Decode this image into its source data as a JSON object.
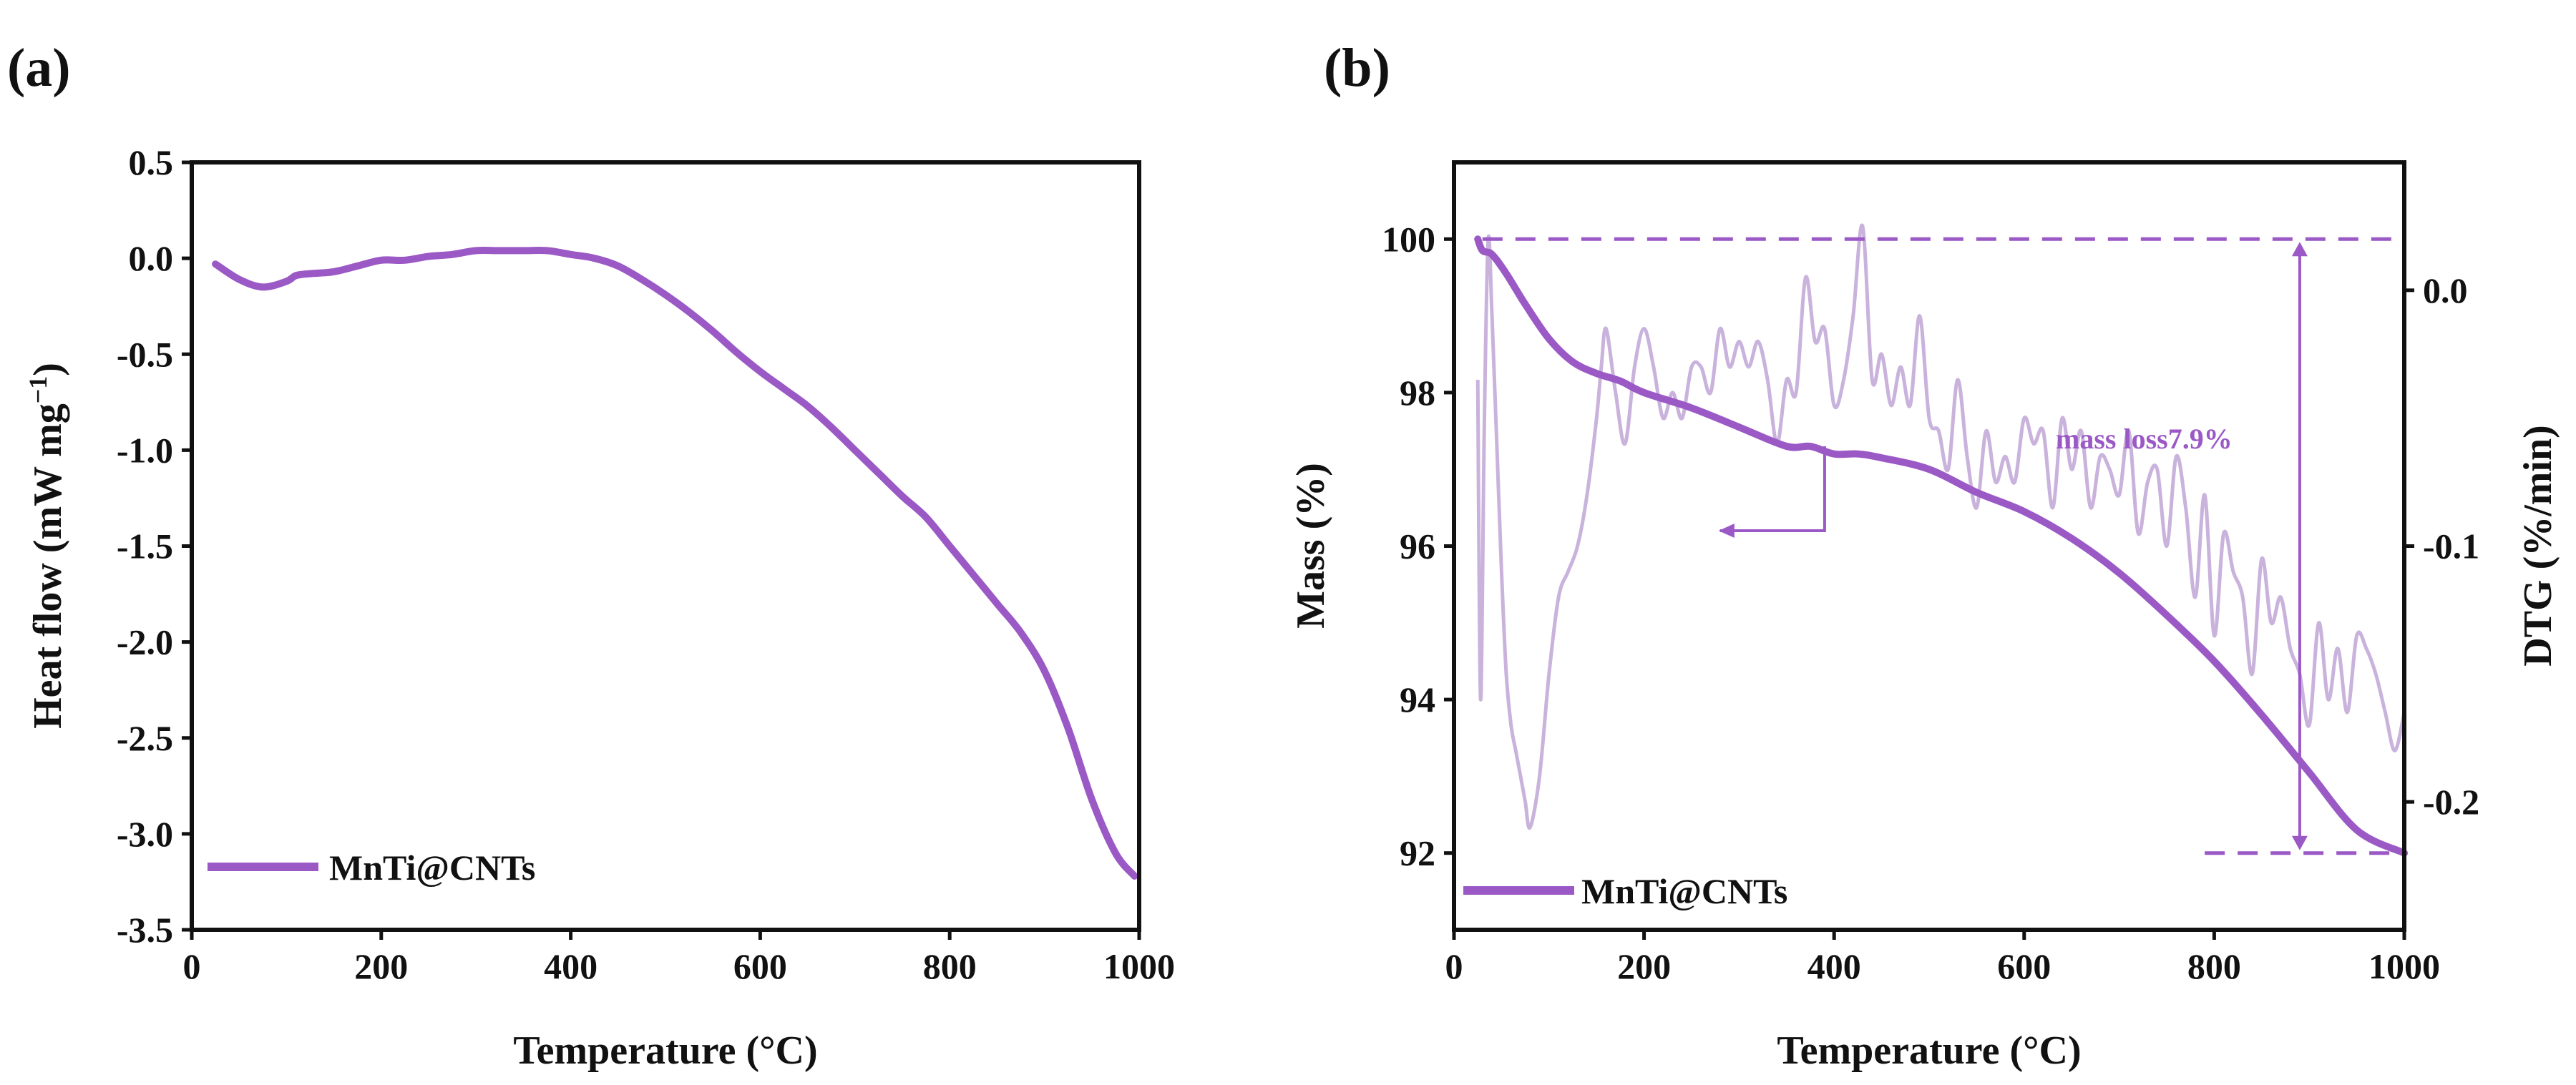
{
  "colors": {
    "curve": "#9b59c6",
    "dtg": "#c9b3dc",
    "annotation": "#9b59c6",
    "axis": "#111111"
  },
  "chart_data": [
    {
      "panel_label": "(a)",
      "type": "line",
      "xlabel": "Temperature (°C)",
      "ylabel": "Heat flow (mW mg",
      "ylabel_sup": "−1",
      "ylabel_end": ")",
      "xlim": [
        0,
        1000
      ],
      "ylim": [
        -3.5,
        0.5
      ],
      "x_ticks": [
        "0",
        "200",
        "400",
        "600",
        "800",
        "1000"
      ],
      "y_ticks": [
        "0.5",
        "0.0",
        "-0.5",
        "-1.0",
        "-1.5",
        "-2.0",
        "-2.5",
        "-3.0",
        "-3.5"
      ],
      "legend": {
        "label": "MnTi@CNTs",
        "position": "bottom-left"
      },
      "series": [
        {
          "name": "MnTi@CNTs",
          "x": [
            25,
            50,
            75,
            100,
            110,
            125,
            150,
            175,
            200,
            225,
            250,
            275,
            300,
            325,
            350,
            375,
            400,
            425,
            450,
            475,
            500,
            525,
            550,
            575,
            600,
            625,
            650,
            675,
            700,
            725,
            750,
            775,
            800,
            825,
            850,
            875,
            900,
            925,
            950,
            975,
            995
          ],
          "y": [
            -0.03,
            -0.11,
            -0.15,
            -0.12,
            -0.09,
            -0.08,
            -0.07,
            -0.04,
            -0.01,
            -0.01,
            0.01,
            0.02,
            0.04,
            0.04,
            0.04,
            0.04,
            0.02,
            0.0,
            -0.04,
            -0.11,
            -0.19,
            -0.28,
            -0.38,
            -0.49,
            -0.59,
            -0.68,
            -0.77,
            -0.88,
            -1.0,
            -1.12,
            -1.24,
            -1.35,
            -1.5,
            -1.65,
            -1.8,
            -1.95,
            -2.15,
            -2.45,
            -2.82,
            -3.1,
            -3.22
          ]
        }
      ]
    },
    {
      "panel_label": "(b)",
      "type": "line",
      "xlabel": "Temperature (°C)",
      "ylabel_left": "Mass (%)",
      "ylabel_right": "DTG (%/min)",
      "xlim": [
        0,
        1000
      ],
      "ylim_left": [
        91,
        101
      ],
      "ylim_right": [
        -0.25,
        0.05
      ],
      "x_ticks": [
        "0",
        "200",
        "400",
        "600",
        "800",
        "1000"
      ],
      "y_ticks_left": [
        "92",
        "94",
        "96",
        "98",
        "100"
      ],
      "y_ticks_right": [
        "-0.2",
        "-0.1",
        "0.0"
      ],
      "legend": {
        "label": "MnTi@CNTs",
        "position": "bottom-left"
      },
      "annotation": {
        "text": "mass loss7.9%",
        "mass_top": 100.0,
        "mass_bottom": 92.0,
        "at_temperature": 890
      },
      "series": [
        {
          "name": "MnTi@CNTs (Mass)",
          "axis": "left",
          "x": [
            25,
            30,
            40,
            55,
            75,
            100,
            125,
            150,
            175,
            200,
            250,
            300,
            350,
            375,
            400,
            425,
            450,
            500,
            550,
            600,
            650,
            700,
            750,
            800,
            850,
            900,
            950,
            1000
          ],
          "y": [
            100.0,
            99.85,
            99.8,
            99.55,
            99.15,
            98.7,
            98.4,
            98.25,
            98.15,
            98.0,
            97.8,
            97.55,
            97.3,
            97.3,
            97.2,
            97.2,
            97.15,
            97.0,
            96.7,
            96.45,
            96.1,
            95.65,
            95.1,
            94.5,
            93.8,
            93.05,
            92.3,
            92.0
          ]
        },
        {
          "name": "MnTi@CNTs (DTG)",
          "axis": "right",
          "x": [
            25,
            28,
            32,
            36,
            40,
            45,
            50,
            55,
            60,
            65,
            70,
            75,
            80,
            90,
            100,
            110,
            120,
            130,
            140,
            150,
            155,
            160,
            170,
            180,
            190,
            200,
            210,
            220,
            230,
            240,
            250,
            260,
            270,
            280,
            290,
            300,
            310,
            320,
            330,
            340,
            350,
            360,
            370,
            380,
            390,
            400,
            410,
            420,
            430,
            440,
            450,
            460,
            470,
            480,
            490,
            500,
            510,
            520,
            530,
            540,
            550,
            560,
            570,
            580,
            590,
            600,
            610,
            620,
            630,
            640,
            650,
            660,
            670,
            680,
            690,
            700,
            710,
            720,
            730,
            740,
            750,
            760,
            770,
            780,
            790,
            800,
            810,
            820,
            830,
            840,
            850,
            860,
            870,
            880,
            890,
            900,
            910,
            920,
            930,
            940,
            950,
            960,
            970,
            980,
            990,
            1000
          ],
          "y": [
            -0.035,
            -0.16,
            -0.05,
            0.02,
            -0.01,
            -0.06,
            -0.11,
            -0.15,
            -0.17,
            -0.18,
            -0.19,
            -0.2,
            -0.21,
            -0.19,
            -0.15,
            -0.12,
            -0.11,
            -0.1,
            -0.08,
            -0.05,
            -0.03,
            -0.015,
            -0.04,
            -0.06,
            -0.03,
            -0.015,
            -0.03,
            -0.05,
            -0.04,
            -0.05,
            -0.03,
            -0.03,
            -0.04,
            -0.015,
            -0.03,
            -0.02,
            -0.03,
            -0.02,
            -0.035,
            -0.06,
            -0.035,
            -0.04,
            0.005,
            -0.02,
            -0.015,
            -0.045,
            -0.035,
            -0.01,
            0.025,
            -0.035,
            -0.025,
            -0.045,
            -0.03,
            -0.045,
            -0.01,
            -0.05,
            -0.055,
            -0.07,
            -0.035,
            -0.065,
            -0.085,
            -0.055,
            -0.075,
            -0.065,
            -0.075,
            -0.05,
            -0.06,
            -0.055,
            -0.085,
            -0.05,
            -0.07,
            -0.055,
            -0.085,
            -0.065,
            -0.07,
            -0.08,
            -0.055,
            -0.095,
            -0.075,
            -0.07,
            -0.1,
            -0.065,
            -0.085,
            -0.12,
            -0.08,
            -0.135,
            -0.095,
            -0.11,
            -0.12,
            -0.15,
            -0.105,
            -0.13,
            -0.12,
            -0.14,
            -0.15,
            -0.17,
            -0.13,
            -0.16,
            -0.14,
            -0.165,
            -0.135,
            -0.14,
            -0.15,
            -0.165,
            -0.18,
            -0.165
          ]
        }
      ]
    }
  ]
}
